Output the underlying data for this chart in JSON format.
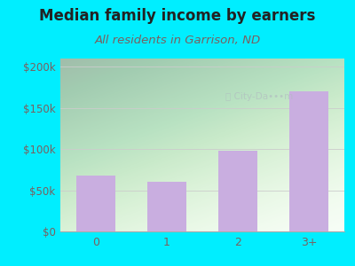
{
  "title": "Median family income by earners",
  "subtitle": "All residents in Garrison, ND",
  "categories": [
    "0",
    "1",
    "2",
    "3+"
  ],
  "values": [
    68000,
    60000,
    98000,
    170000
  ],
  "bar_color": "#c9aee0",
  "background_outer": "#00eeff",
  "title_color": "#222222",
  "subtitle_color": "#7a6060",
  "tick_color": "#7a6060",
  "ylim": [
    0,
    210000
  ],
  "yticks": [
    0,
    50000,
    100000,
    150000,
    200000
  ],
  "ytick_labels": [
    "$0",
    "$50k",
    "$100k",
    "$150k",
    "$200k"
  ],
  "title_fontsize": 12,
  "subtitle_fontsize": 9.5
}
